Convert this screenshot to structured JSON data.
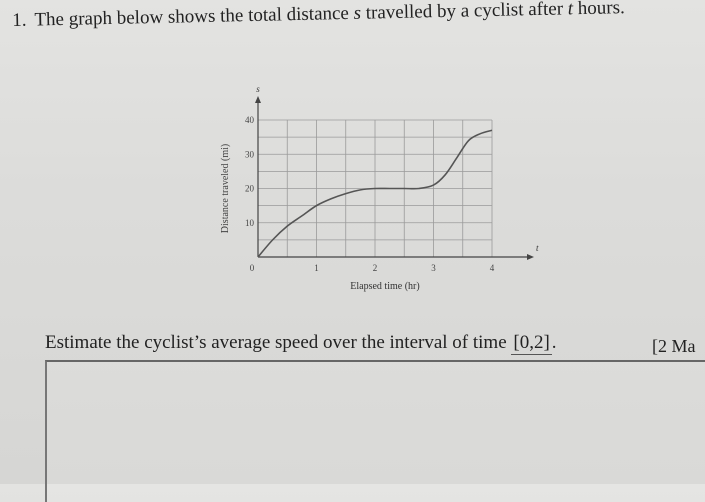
{
  "question": {
    "number": "1.",
    "text_before": "The graph below shows the total distance ",
    "var_s": "s",
    "text_middle": " travelled by a cyclist after ",
    "var_t": "t",
    "text_after": " hours."
  },
  "prompt": {
    "text": "Estimate the cyclist’s average speed over the interval of time ",
    "interval": "[0,2]",
    "end": "."
  },
  "marks": "[2 Ma",
  "chart_data": {
    "type": "line",
    "xlabel": "Elapsed time (hr)",
    "ylabel": "Distance traveled (mi)",
    "x_axis_var": "t",
    "y_axis_var": "s",
    "xlim": [
      0,
      4
    ],
    "ylim": [
      0,
      40
    ],
    "x_ticks": [
      "0",
      "1",
      "2",
      "3",
      "4"
    ],
    "y_ticks": [
      "10",
      "20",
      "30",
      "40"
    ],
    "grid": true,
    "series": [
      {
        "x": [
          0,
          0.25,
          0.5,
          0.75,
          1,
          1.25,
          1.5,
          1.75,
          2,
          2.25,
          2.5,
          2.75,
          3,
          3.2,
          3.4,
          3.6,
          3.8,
          4
        ],
        "y": [
          0,
          5,
          9,
          12,
          15,
          17,
          18.5,
          19.6,
          20,
          20,
          20,
          20,
          21,
          24,
          29,
          34,
          36,
          37
        ]
      }
    ]
  }
}
